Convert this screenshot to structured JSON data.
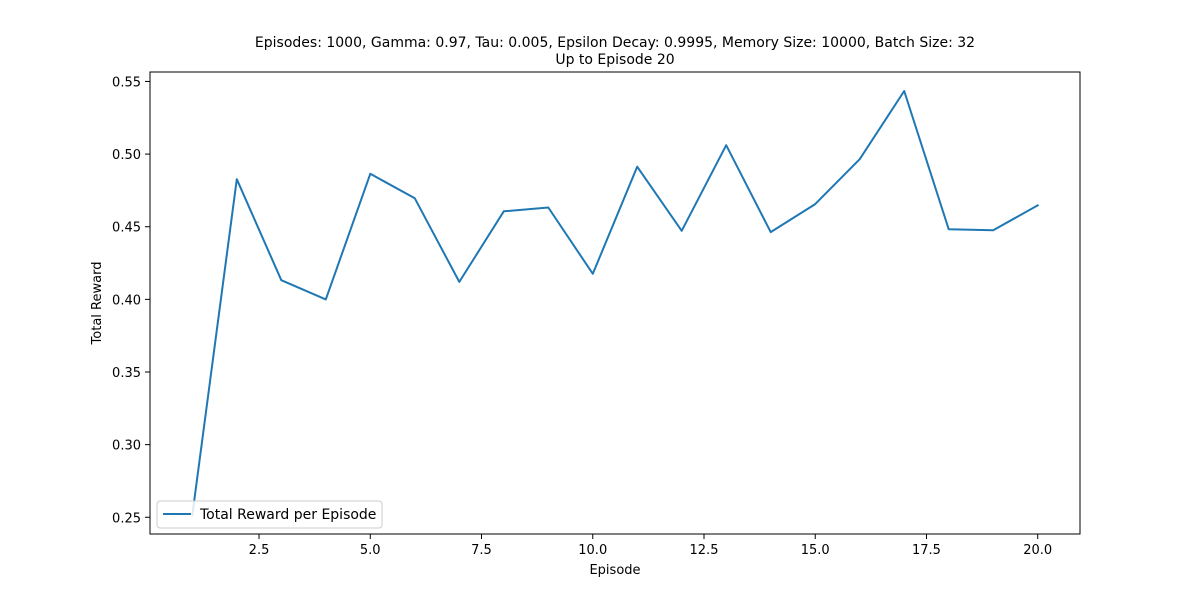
{
  "chart_data": {
    "type": "line",
    "title": "Episodes: 1000, Gamma: 0.97, Tau: 0.005, Epsilon Decay: 0.9995, Memory Size: 10000, Batch Size: 32",
    "subtitle": "Up to Episode 20",
    "xlabel": "Episode",
    "ylabel": "Total Reward",
    "xlim": [
      0.05,
      20.95
    ],
    "ylim": [
      0.2385,
      0.5565
    ],
    "x_ticks": [
      2.5,
      5.0,
      7.5,
      10.0,
      12.5,
      15.0,
      17.5,
      20.0
    ],
    "x_tick_labels": [
      "2.5",
      "5.0",
      "7.5",
      "10.0",
      "12.5",
      "15.0",
      "17.5",
      "20.0"
    ],
    "y_ticks": [
      0.25,
      0.3,
      0.35,
      0.4,
      0.45,
      0.5,
      0.55
    ],
    "y_tick_labels": [
      "0.25",
      "0.30",
      "0.35",
      "0.40",
      "0.45",
      "0.50",
      "0.55"
    ],
    "grid": false,
    "legend_position": "lower-left",
    "series": [
      {
        "name": "Total Reward per Episode",
        "color": "#1f77b4",
        "x": [
          1,
          2,
          3,
          4,
          5,
          6,
          7,
          8,
          9,
          10,
          11,
          12,
          13,
          14,
          15,
          16,
          17,
          18,
          19,
          20
        ],
        "values": [
          0.2515,
          0.4827,
          0.4132,
          0.4,
          0.4864,
          0.4696,
          0.412,
          0.4606,
          0.4632,
          0.4176,
          0.4913,
          0.4472,
          0.5061,
          0.4463,
          0.4656,
          0.4965,
          0.5434,
          0.4483,
          0.4476,
          0.4647
        ]
      }
    ]
  }
}
